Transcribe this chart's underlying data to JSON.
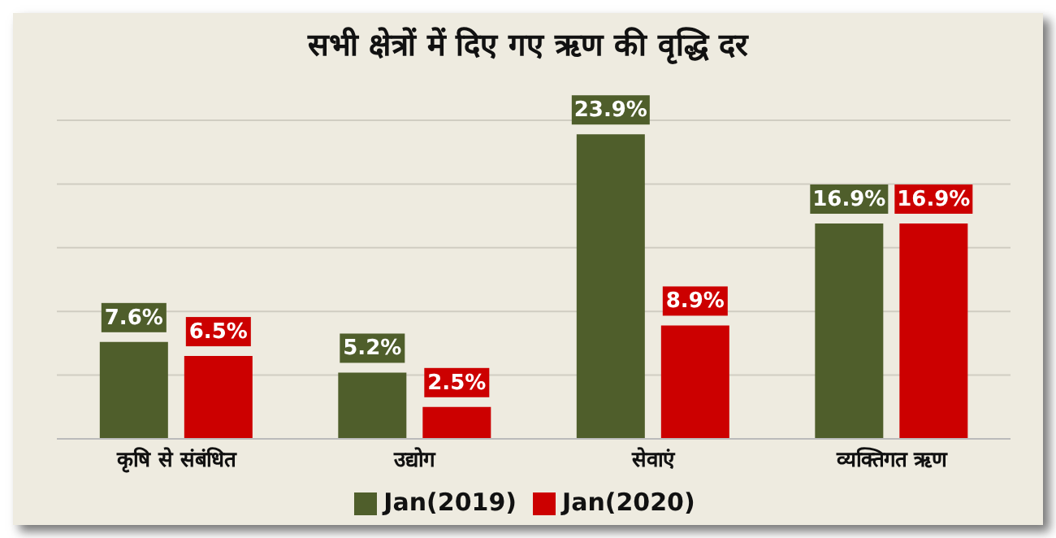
{
  "chart_data": {
    "type": "bar",
    "title": "सभी क्षेत्रों में दिए गए ऋण की वृद्धि दर",
    "categories": [
      "कृषि से संबंधित",
      "उद्योग",
      "सेवाएं",
      "व्यक्तिगत ऋण"
    ],
    "series": [
      {
        "name": "Jan(2019)",
        "color": "#4f5e2b",
        "values": [
          7.6,
          5.2,
          23.9,
          16.9
        ],
        "value_labels": [
          "7.6%",
          "5.2%",
          "23.9%",
          "16.9%"
        ]
      },
      {
        "name": "Jan(2020)",
        "color": "#cc0000",
        "values": [
          6.5,
          2.5,
          8.9,
          16.9
        ],
        "value_labels": [
          "6.5%",
          "2.5%",
          "8.9%",
          "16.9%"
        ]
      }
    ],
    "tick_labels": "x",
    "grid": "y",
    "legend": "bottom"
  }
}
